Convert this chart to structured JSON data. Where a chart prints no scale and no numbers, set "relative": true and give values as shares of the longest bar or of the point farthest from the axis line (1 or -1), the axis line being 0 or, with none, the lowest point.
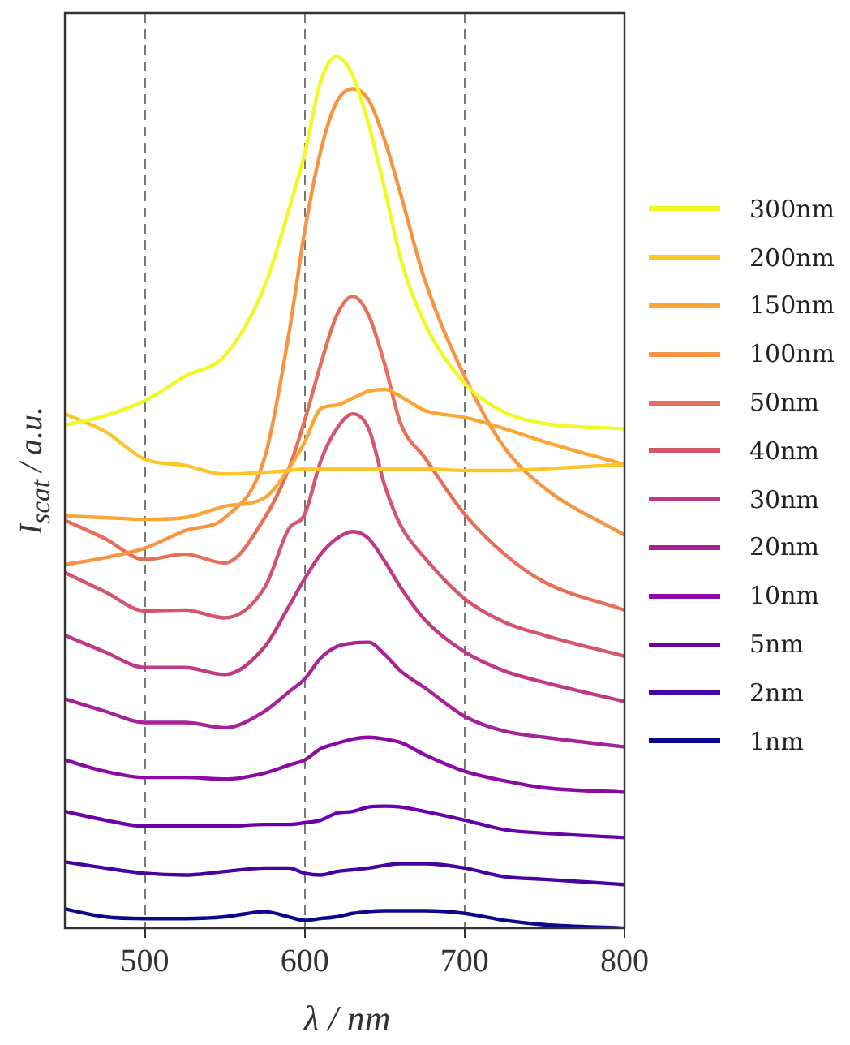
{
  "chart_data": {
    "type": "line",
    "xlabel": "λ / nm",
    "ylabel": "I$_{scat}$ / a.u.",
    "relative": true,
    "xlim": [
      450,
      800
    ],
    "xticks": [
      500,
      600,
      700,
      800
    ],
    "grid": "x",
    "legend": "right",
    "marker": "none",
    "line_style": "solid",
    "x": [
      450,
      475,
      500,
      525,
      550,
      575,
      590,
      600,
      610,
      620,
      630,
      640,
      650,
      660,
      675,
      700,
      725,
      750,
      800
    ],
    "series": [
      {
        "name": "300nm",
        "color": "#f0f921",
        "values": [
          0.577,
          0.588,
          0.605,
          0.633,
          0.657,
          0.737,
          0.824,
          0.889,
          0.972,
          1,
          0.978,
          0.922,
          0.848,
          0.768,
          0.694,
          0.625,
          0.592,
          0.579,
          0.573
        ]
      },
      {
        "name": "200nm",
        "color": "#fdc527",
        "values": [
          0.59,
          0.57,
          0.538,
          0.531,
          0.521,
          0.523,
          0.525,
          0.527,
          0.527,
          0.527,
          0.527,
          0.527,
          0.527,
          0.527,
          0.527,
          0.525,
          0.525,
          0.527,
          0.532
        ]
      },
      {
        "name": "150nm",
        "color": "#fca636",
        "values": [
          0.473,
          0.471,
          0.469,
          0.471,
          0.484,
          0.494,
          0.527,
          0.558,
          0.596,
          0.6,
          0.608,
          0.616,
          0.618,
          0.61,
          0.594,
          0.586,
          0.573,
          0.558,
          0.532
        ]
      },
      {
        "name": "100nm",
        "color": "#f89441",
        "values": [
          0.417,
          0.425,
          0.436,
          0.456,
          0.471,
          0.54,
          0.681,
          0.8,
          0.892,
          0.948,
          0.963,
          0.95,
          0.904,
          0.842,
          0.744,
          0.633,
          0.551,
          0.505,
          0.451
        ]
      },
      {
        "name": "50nm",
        "color": "#e76f5a",
        "values": [
          0.468,
          0.447,
          0.423,
          0.429,
          0.419,
          0.471,
          0.527,
          0.583,
          0.647,
          0.703,
          0.725,
          0.703,
          0.647,
          0.579,
          0.54,
          0.475,
          0.429,
          0.397,
          0.365
        ]
      },
      {
        "name": "40nm",
        "color": "#d5546e",
        "values": [
          0.408,
          0.386,
          0.364,
          0.365,
          0.356,
          0.391,
          0.458,
          0.475,
          0.536,
          0.573,
          0.59,
          0.573,
          0.508,
          0.462,
          0.425,
          0.378,
          0.351,
          0.336,
          0.312
        ]
      },
      {
        "name": "30nm",
        "color": "#bf3984",
        "values": [
          0.336,
          0.317,
          0.299,
          0.299,
          0.291,
          0.323,
          0.369,
          0.401,
          0.429,
          0.447,
          0.455,
          0.447,
          0.421,
          0.391,
          0.354,
          0.317,
          0.295,
          0.282,
          0.26
        ]
      },
      {
        "name": "20nm",
        "color": "#a72197",
        "values": [
          0.263,
          0.249,
          0.236,
          0.236,
          0.23,
          0.249,
          0.271,
          0.286,
          0.31,
          0.323,
          0.327,
          0.328,
          0.314,
          0.295,
          0.276,
          0.243,
          0.226,
          0.219,
          0.208
        ]
      },
      {
        "name": "10nm",
        "color": "#8b0aa5",
        "values": [
          0.193,
          0.18,
          0.173,
          0.173,
          0.171,
          0.178,
          0.187,
          0.193,
          0.206,
          0.212,
          0.217,
          0.219,
          0.217,
          0.213,
          0.199,
          0.18,
          0.169,
          0.161,
          0.156
        ]
      },
      {
        "name": "5nm",
        "color": "#6a00a8",
        "values": [
          0.134,
          0.124,
          0.117,
          0.117,
          0.117,
          0.119,
          0.119,
          0.121,
          0.124,
          0.132,
          0.134,
          0.139,
          0.14,
          0.139,
          0.134,
          0.124,
          0.113,
          0.109,
          0.104
        ]
      },
      {
        "name": "2nm",
        "color": "#46039f",
        "values": [
          0.076,
          0.069,
          0.063,
          0.061,
          0.065,
          0.069,
          0.069,
          0.063,
          0.061,
          0.065,
          0.067,
          0.069,
          0.072,
          0.074,
          0.074,
          0.069,
          0.059,
          0.056,
          0.05
        ]
      },
      {
        "name": "1nm",
        "color": "#0d0887",
        "values": [
          0.022,
          0.013,
          0.011,
          0.011,
          0.013,
          0.019,
          0.013,
          0.009,
          0.011,
          0.013,
          0.017,
          0.019,
          0.02,
          0.02,
          0.02,
          0.017,
          0.009,
          0.004,
          0
        ]
      }
    ]
  }
}
